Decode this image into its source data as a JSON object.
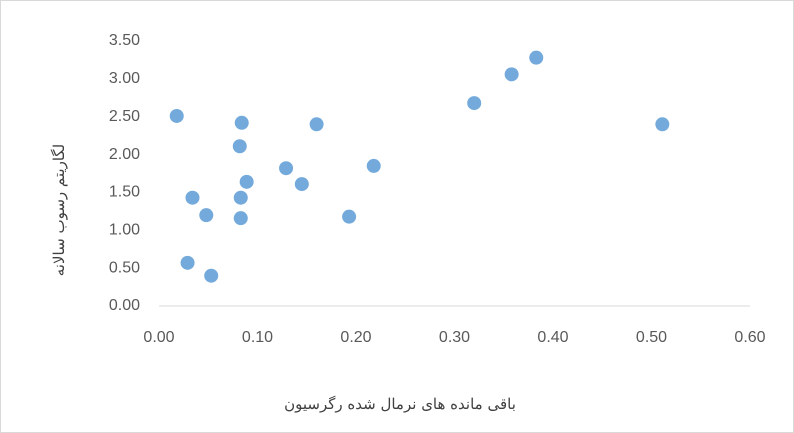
{
  "chart_data": {
    "type": "scatter",
    "x_label": "باقی مانده های نرمال شده رگرسیون",
    "y_label": "لگاریتم رسوب سالانه",
    "series": [
      {
        "color": "#5b9bd5",
        "x": [
          0.018,
          0.034,
          0.029,
          0.048,
          0.053,
          0.082,
          0.084,
          0.083,
          0.083,
          0.089,
          0.129,
          0.145,
          0.16,
          0.193,
          0.218,
          0.32,
          0.358,
          0.383,
          0.511
        ],
        "values": [
          2.51,
          1.43,
          0.57,
          1.2,
          0.4,
          2.11,
          2.42,
          1.43,
          1.16,
          1.64,
          1.82,
          1.61,
          2.4,
          1.18,
          1.85,
          2.68,
          3.06,
          3.28,
          2.4
        ]
      }
    ],
    "xlim": [
      0,
      0.6
    ],
    "xticks": [
      {
        "value": 0,
        "label": "0.00"
      },
      {
        "value": 0.1,
        "label": "0.10"
      },
      {
        "value": 0.2,
        "label": "0.20"
      },
      {
        "value": 0.3,
        "label": "0.30"
      },
      {
        "value": 0.4,
        "label": "0.40"
      },
      {
        "value": 0.5,
        "label": "0.50"
      },
      {
        "value": 0.6,
        "label": "0.60"
      }
    ],
    "ylim": [
      0,
      3.5
    ],
    "yticks": [
      {
        "value": 0,
        "label": "0.00"
      },
      {
        "value": 0.5,
        "label": "0.50"
      },
      {
        "value": 1,
        "label": "1.00"
      },
      {
        "value": 1.5,
        "label": "1.50"
      },
      {
        "value": 2,
        "label": "2.00"
      },
      {
        "value": 2.5,
        "label": "2.50"
      },
      {
        "value": 3,
        "label": "3.00"
      },
      {
        "value": 3.5,
        "label": "3.50"
      }
    ]
  }
}
